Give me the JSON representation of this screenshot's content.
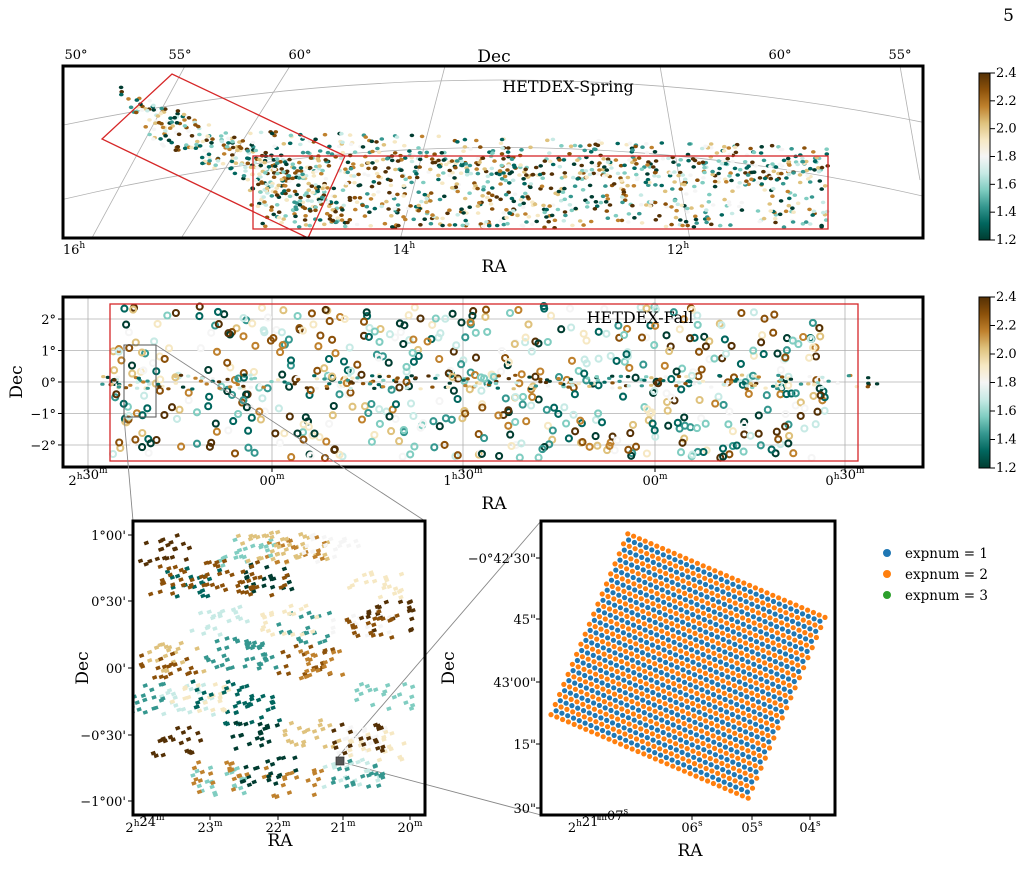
{
  "page_number": "5",
  "colors": {
    "survey_box": "#d62728",
    "colormap": [
      "#003c30",
      "#01665e",
      "#35978f",
      "#80cdc1",
      "#c7eae5",
      "#f5f5f5",
      "#f6e8c3",
      "#dfc27d",
      "#bf812d",
      "#8c510a",
      "#543005"
    ],
    "expnum": [
      "#1f77b4",
      "#ff7f0e",
      "#2ca02c"
    ]
  },
  "chart_data": [
    {
      "type": "scatter",
      "title": "HETDEX-Spring",
      "xlabel": "RA",
      "ylabel": "Dec",
      "projection": "orthographic sky grid",
      "ra_ticks": [
        "16h",
        "14h",
        "12h"
      ],
      "dec_ticks_top": [
        "50°",
        "55°",
        "60°",
        "60°",
        "55°"
      ],
      "colorbar": {
        "ticks": [
          "1.2",
          "1.4",
          "1.6",
          "1.8",
          "2.0",
          "2.2",
          "2.4"
        ],
        "range": [
          1.2,
          2.4
        ]
      }
    },
    {
      "type": "scatter",
      "title": "HETDEX-Fall",
      "xlabel": "RA",
      "ylabel": "Dec",
      "xticks": [
        "2h30m",
        "00m",
        "1h30m",
        "00m",
        "0h30m"
      ],
      "yticks": [
        "2°",
        "1°",
        "0°",
        "−1°",
        "−2°"
      ],
      "ylim": [
        -2.7,
        2.7
      ],
      "colorbar": {
        "ticks": [
          "1.2",
          "1.4",
          "1.6",
          "1.8",
          "2.0",
          "2.2",
          "2.4"
        ],
        "range": [
          1.2,
          2.4
        ]
      }
    },
    {
      "type": "scatter",
      "title": "",
      "xlabel": "RA",
      "ylabel": "Dec",
      "xticks": [
        "2h24m",
        "23m",
        "22m",
        "21m",
        "20m"
      ],
      "yticks": [
        "1°00'",
        "0°30'",
        "00'",
        "−0°30'",
        "−1°00'"
      ]
    },
    {
      "type": "scatter",
      "title": "",
      "xlabel": "RA",
      "ylabel": "Dec",
      "xticks": [
        "2h21m07s",
        "06s",
        "05s",
        "04s"
      ],
      "yticks": [
        "−0°42'30\"",
        "45\"",
        "43'00\"",
        "15\"",
        "30\""
      ],
      "series": [
        {
          "name": "expnum = 1"
        },
        {
          "name": "expnum = 2"
        },
        {
          "name": "expnum = 3"
        }
      ]
    }
  ]
}
